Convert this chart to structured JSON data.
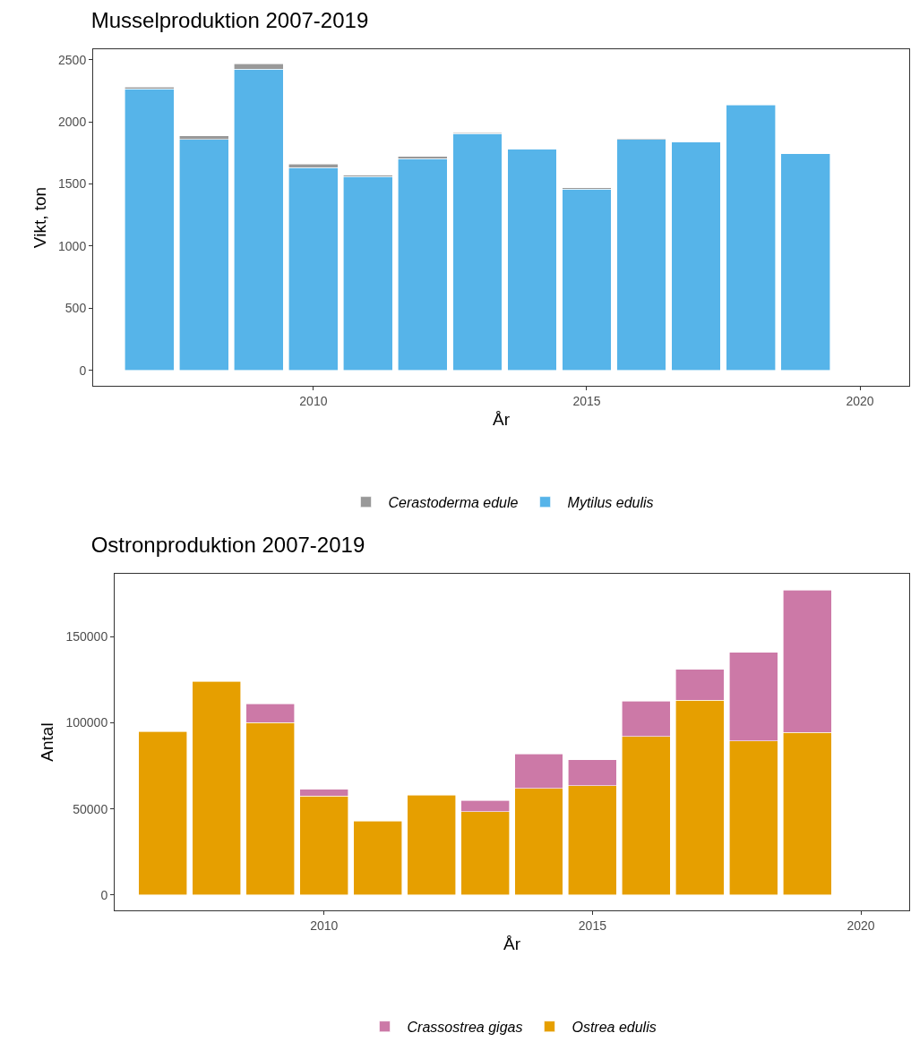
{
  "chart_data": [
    {
      "type": "bar",
      "title": "Musselproduktion 2007-2019",
      "xlabel": "År",
      "ylabel": "Vikt, ton",
      "stacked": true,
      "x": [
        2007,
        2008,
        2009,
        2010,
        2011,
        2012,
        2013,
        2014,
        2015,
        2016,
        2017,
        2018,
        2019
      ],
      "series": [
        {
          "name": "Mytilus edulis",
          "color": "#56b4e9",
          "values": [
            2265,
            1858,
            2426,
            1632,
            1560,
            1704,
            1905,
            1780,
            1459,
            1858,
            1836,
            2136,
            1745
          ]
        },
        {
          "name": "Cerastoderma edule",
          "color": "#999999",
          "values": [
            15,
            30,
            42,
            30,
            12,
            17,
            8,
            null,
            10,
            7,
            null,
            null,
            null
          ]
        }
      ],
      "xlim": [
        2005.97,
        2020.9
      ],
      "xticks": [
        2010,
        2015,
        2020
      ],
      "ylim": [
        -125,
        2585
      ],
      "yticks": [
        0,
        500,
        1000,
        1500,
        2000,
        2500
      ],
      "grid": false,
      "legend": "bottom"
    },
    {
      "type": "bar",
      "title": "Ostronproduktion 2007-2019",
      "xlabel": "År",
      "ylabel": "Antal",
      "stacked": true,
      "x": [
        2007,
        2008,
        2009,
        2010,
        2011,
        2012,
        2013,
        2014,
        2015,
        2016,
        2017,
        2018,
        2019
      ],
      "series": [
        {
          "name": "Ostrea edulis",
          "color": "#e69f00",
          "values": [
            95000,
            124000,
            100000,
            57500,
            43000,
            58000,
            48500,
            62000,
            63500,
            92000,
            113000,
            89500,
            94500
          ]
        },
        {
          "name": "Crassostrea gigas",
          "color": "#cc79a7",
          "values": [
            null,
            null,
            11000,
            4000,
            null,
            null,
            6500,
            20000,
            15000,
            20500,
            18000,
            51500,
            82500
          ]
        }
      ],
      "xlim": [
        2006.1,
        2020.9
      ],
      "xticks": [
        2010,
        2015,
        2020
      ],
      "ylim": [
        -8900,
        186500
      ],
      "yticks": [
        0,
        50000,
        100000,
        150000
      ],
      "grid": false,
      "legend": "bottom"
    }
  ]
}
